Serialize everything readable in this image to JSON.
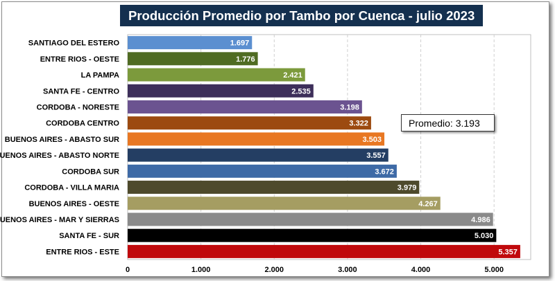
{
  "chart_data": {
    "type": "bar",
    "orientation": "horizontal",
    "title": "Producción Promedio por Tambo por Cuenca -  julio 2023",
    "categories": [
      "SANTIAGO DEL ESTERO",
      "ENTRE RIOS - OESTE",
      "LA PAMPA",
      "SANTA FE - CENTRO",
      "CORDOBA - NORESTE",
      "CORDOBA CENTRO",
      "BUENOS AIRES - ABASTO SUR",
      "BUENOS AIRES - ABASTO NORTE",
      "CORDOBA SUR",
      "CORDOBA - VILLA MARIA",
      "BUENOS AIRES - OESTE",
      "BUENOS AIRES - MAR Y SIERRAS",
      "SANTA FE - SUR",
      "ENTRE RIOS - ESTE"
    ],
    "values": [
      1697,
      1776,
      2421,
      2535,
      3198,
      3322,
      3503,
      3557,
      3672,
      3979,
      4267,
      4986,
      5030,
      5357
    ],
    "value_labels": [
      "1.697",
      "1.776",
      "2.421",
      "2.535",
      "3.198",
      "3.322",
      "3.503",
      "3.557",
      "3.672",
      "3.979",
      "4.267",
      "4.986",
      "5.030",
      "5.357"
    ],
    "colors": [
      "#5b8fd0",
      "#4f6b22",
      "#7c9a3c",
      "#3d2f5a",
      "#6b5390",
      "#9c4a10",
      "#e87722",
      "#243e63",
      "#3e6aa6",
      "#4e4a2c",
      "#a59d62",
      "#8a8a8a",
      "#000000",
      "#c0090c"
    ],
    "x_ticks": [
      0,
      1000,
      2000,
      3000,
      4000,
      5000
    ],
    "x_tick_labels": [
      "0",
      "1.000",
      "2.000",
      "3.000",
      "4.000",
      "5.000"
    ],
    "xlim": [
      0,
      5500
    ],
    "grid": true,
    "annotation": "Promedio: 3.193"
  }
}
